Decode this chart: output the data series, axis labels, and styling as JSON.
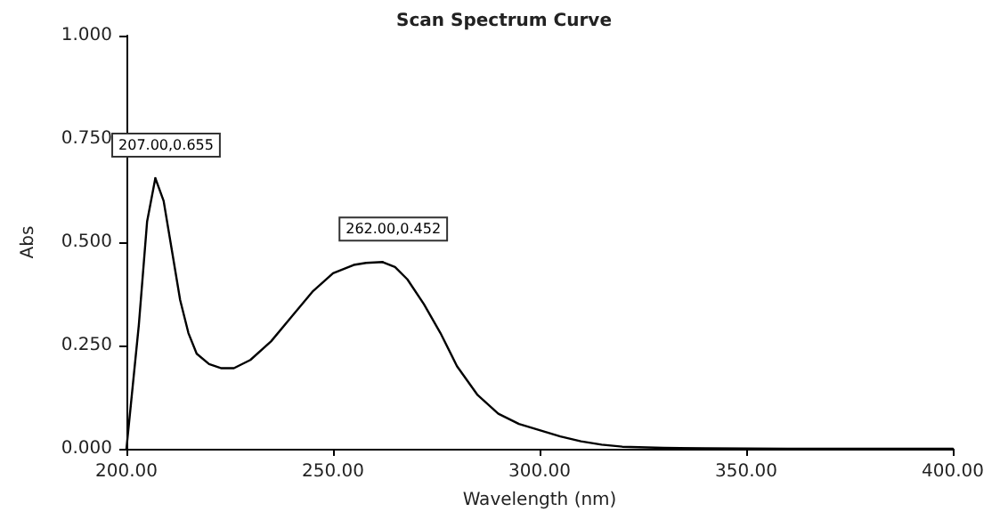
{
  "chart_data": {
    "type": "line",
    "title": "Scan Spectrum Curve",
    "xlabel": "Wavelength (nm)",
    "ylabel": "Abs",
    "x": [
      200,
      201,
      203,
      205,
      207,
      209,
      211,
      213,
      215,
      217,
      220,
      223,
      226,
      230,
      235,
      240,
      245,
      250,
      255,
      258,
      262,
      265,
      268,
      272,
      276,
      280,
      285,
      290,
      295,
      300,
      305,
      310,
      315,
      320,
      330,
      340,
      360,
      380,
      400
    ],
    "series": [
      {
        "color": "#000000",
        "values": [
          0,
          0.1,
          0.3,
          0.55,
          0.655,
          0.6,
          0.48,
          0.36,
          0.28,
          0.23,
          0.205,
          0.195,
          0.195,
          0.215,
          0.26,
          0.32,
          0.38,
          0.425,
          0.445,
          0.45,
          0.452,
          0.44,
          0.41,
          0.35,
          0.28,
          0.2,
          0.13,
          0.085,
          0.06,
          0.045,
          0.03,
          0.018,
          0.01,
          0.005,
          0.002,
          0.001,
          0,
          0,
          0
        ]
      }
    ],
    "annotations": [
      {
        "text": "207.00,0.655",
        "x": 207,
        "y": 0.655
      },
      {
        "text": "262.00,0.452",
        "x": 262,
        "y": 0.452
      }
    ],
    "xlim": [
      200,
      400
    ],
    "xticks": [
      {
        "value": 200,
        "label": "200.00"
      },
      {
        "value": 250,
        "label": "250.00"
      },
      {
        "value": 300,
        "label": "300.00"
      },
      {
        "value": 350,
        "label": "350.00"
      },
      {
        "value": 400,
        "label": "400.00"
      }
    ],
    "ylim": [
      0,
      1
    ],
    "yticks": [
      {
        "value": 0,
        "label": "0.000"
      },
      {
        "value": 0.25,
        "label": "0.250"
      },
      {
        "value": 0.5,
        "label": "0.500"
      },
      {
        "value": 0.75,
        "label": "0.750"
      },
      {
        "value": 1,
        "label": "1.000"
      }
    ],
    "grid": false,
    "marker": "none",
    "line_style": "solid"
  }
}
